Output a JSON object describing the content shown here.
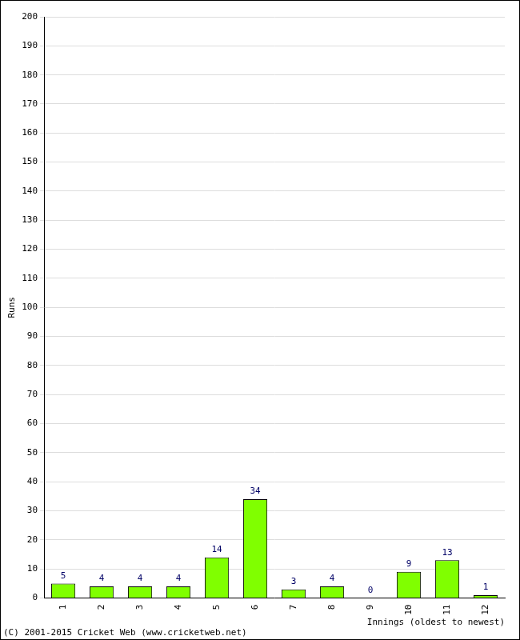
{
  "chart_data": {
    "type": "bar",
    "categories": [
      "1",
      "2",
      "3",
      "4",
      "5",
      "6",
      "7",
      "8",
      "9",
      "10",
      "11",
      "12"
    ],
    "values": [
      5,
      4,
      4,
      4,
      14,
      34,
      3,
      4,
      0,
      9,
      13,
      1
    ],
    "color": "#80ff00",
    "x_label": "Innings (oldest to newest)",
    "y_label": "Runs",
    "annotations": [
      "(C) 2001-2015 Cricket Web (www.cricketweb.net)"
    ],
    "ylim": [
      0,
      200
    ],
    "yticks": [
      0,
      10,
      20,
      30,
      40,
      50,
      60,
      70,
      80,
      90,
      100,
      110,
      120,
      130,
      140,
      150,
      160,
      170,
      180,
      190,
      200
    ],
    "grid": true,
    "data_labels": true
  }
}
